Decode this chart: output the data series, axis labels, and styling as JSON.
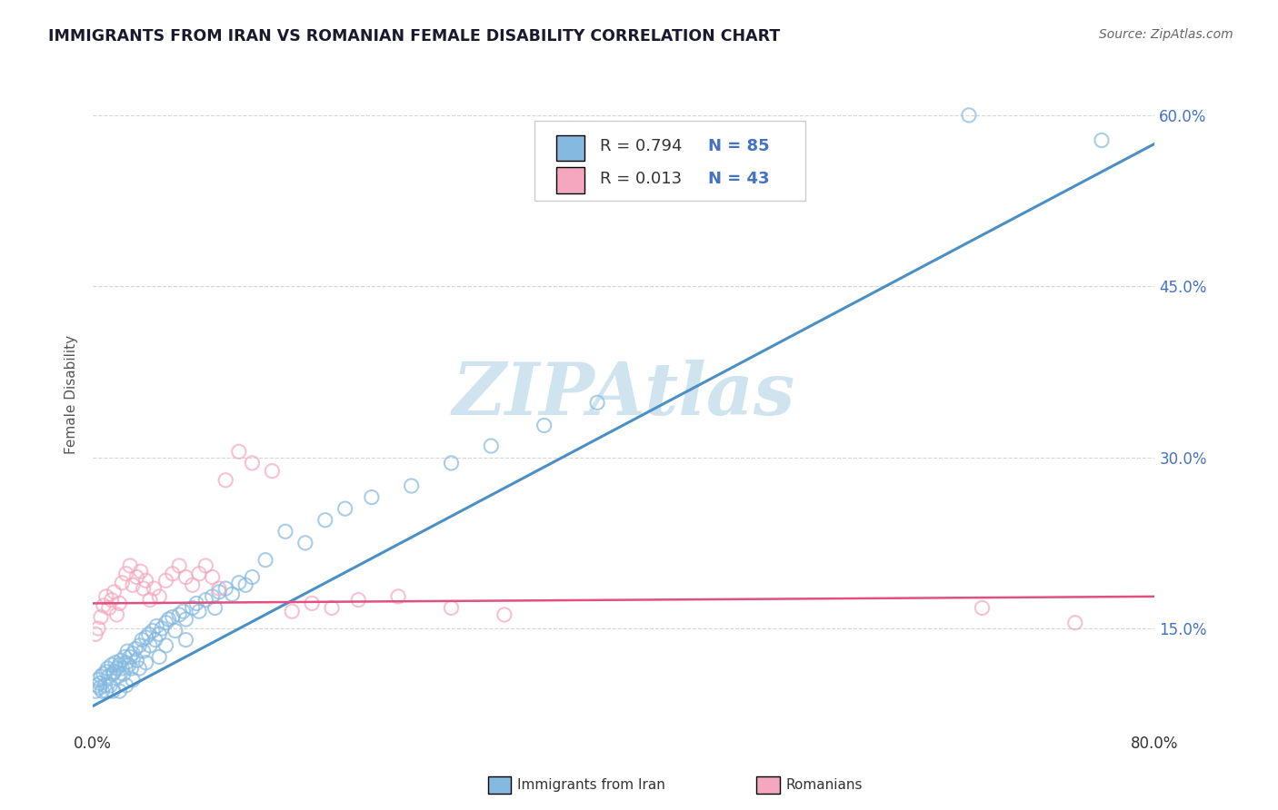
{
  "title": "IMMIGRANTS FROM IRAN VS ROMANIAN FEMALE DISABILITY CORRELATION CHART",
  "source": "Source: ZipAtlas.com",
  "ylabel": "Female Disability",
  "legend_label1": "Immigrants from Iran",
  "legend_label2": "Romanians",
  "legend_R1": "R = 0.794",
  "legend_N1": "N = 85",
  "legend_R2": "R = 0.013",
  "legend_N2": "N = 43",
  "blue_color": "#85b9e0",
  "pink_color": "#f4a7be",
  "blue_line_color": "#4a90c4",
  "pink_line_color": "#e05080",
  "watermark": "ZIPAtlas",
  "watermark_color": "#d0e4f0",
  "title_color": "#1a1a2e",
  "source_color": "#666666",
  "background_color": "#ffffff",
  "grid_color": "#cccccc",
  "xmin": 0.0,
  "xmax": 0.8,
  "ymin": 0.06,
  "ymax": 0.65,
  "blue_scatter_x": [
    0.002,
    0.003,
    0.004,
    0.005,
    0.005,
    0.006,
    0.007,
    0.008,
    0.009,
    0.01,
    0.01,
    0.011,
    0.012,
    0.013,
    0.014,
    0.015,
    0.015,
    0.016,
    0.017,
    0.018,
    0.019,
    0.02,
    0.02,
    0.021,
    0.022,
    0.023,
    0.024,
    0.025,
    0.025,
    0.026,
    0.027,
    0.028,
    0.029,
    0.03,
    0.03,
    0.032,
    0.033,
    0.035,
    0.035,
    0.037,
    0.038,
    0.04,
    0.04,
    0.042,
    0.043,
    0.045,
    0.047,
    0.048,
    0.05,
    0.05,
    0.052,
    0.055,
    0.055,
    0.057,
    0.06,
    0.062,
    0.065,
    0.068,
    0.07,
    0.07,
    0.075,
    0.078,
    0.08,
    0.085,
    0.09,
    0.092,
    0.095,
    0.1,
    0.105,
    0.11,
    0.115,
    0.12,
    0.13,
    0.145,
    0.16,
    0.175,
    0.19,
    0.21,
    0.24,
    0.27,
    0.3,
    0.34,
    0.38,
    0.66,
    0.76
  ],
  "blue_scatter_y": [
    0.095,
    0.1,
    0.105,
    0.098,
    0.102,
    0.108,
    0.095,
    0.11,
    0.1,
    0.112,
    0.095,
    0.115,
    0.108,
    0.1,
    0.118,
    0.11,
    0.095,
    0.112,
    0.12,
    0.115,
    0.108,
    0.118,
    0.095,
    0.122,
    0.115,
    0.11,
    0.125,
    0.12,
    0.1,
    0.13,
    0.118,
    0.125,
    0.115,
    0.128,
    0.105,
    0.132,
    0.122,
    0.135,
    0.115,
    0.14,
    0.13,
    0.142,
    0.12,
    0.145,
    0.135,
    0.148,
    0.14,
    0.152,
    0.145,
    0.125,
    0.15,
    0.155,
    0.135,
    0.158,
    0.16,
    0.148,
    0.162,
    0.165,
    0.158,
    0.14,
    0.168,
    0.172,
    0.165,
    0.175,
    0.178,
    0.168,
    0.182,
    0.185,
    0.18,
    0.19,
    0.188,
    0.195,
    0.21,
    0.235,
    0.225,
    0.245,
    0.255,
    0.265,
    0.275,
    0.295,
    0.31,
    0.328,
    0.348,
    0.6,
    0.578
  ],
  "pink_scatter_x": [
    0.002,
    0.004,
    0.006,
    0.008,
    0.01,
    0.012,
    0.014,
    0.016,
    0.018,
    0.02,
    0.022,
    0.025,
    0.028,
    0.03,
    0.033,
    0.036,
    0.038,
    0.04,
    0.043,
    0.046,
    0.05,
    0.055,
    0.06,
    0.065,
    0.07,
    0.075,
    0.08,
    0.085,
    0.09,
    0.095,
    0.1,
    0.11,
    0.12,
    0.135,
    0.15,
    0.165,
    0.18,
    0.2,
    0.23,
    0.27,
    0.31,
    0.67,
    0.74
  ],
  "pink_scatter_y": [
    0.145,
    0.15,
    0.16,
    0.17,
    0.178,
    0.168,
    0.175,
    0.182,
    0.162,
    0.172,
    0.19,
    0.198,
    0.205,
    0.188,
    0.195,
    0.2,
    0.185,
    0.192,
    0.175,
    0.185,
    0.178,
    0.192,
    0.198,
    0.205,
    0.195,
    0.188,
    0.198,
    0.205,
    0.195,
    0.185,
    0.28,
    0.305,
    0.295,
    0.288,
    0.165,
    0.172,
    0.168,
    0.175,
    0.178,
    0.168,
    0.162,
    0.168,
    0.155
  ],
  "blue_line_x": [
    0.0,
    0.8
  ],
  "blue_line_y": [
    0.082,
    0.575
  ],
  "pink_line_x": [
    0.0,
    0.8
  ],
  "pink_line_y": [
    0.172,
    0.178
  ]
}
